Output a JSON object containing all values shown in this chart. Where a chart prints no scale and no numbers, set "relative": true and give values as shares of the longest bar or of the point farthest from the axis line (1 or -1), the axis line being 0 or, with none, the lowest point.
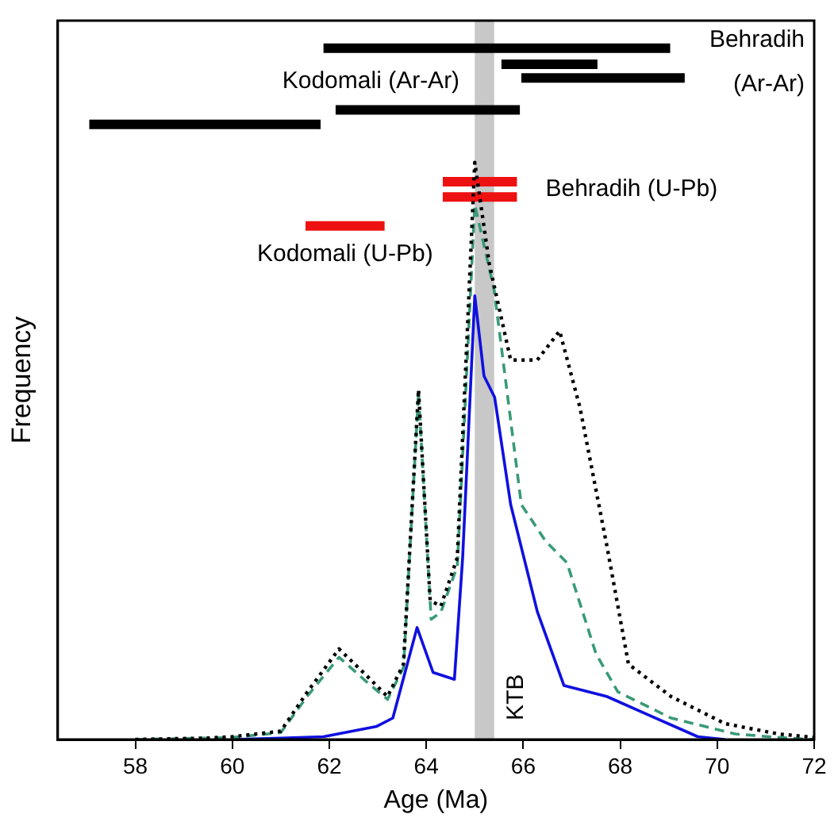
{
  "chart_data": {
    "type": "line",
    "xlabel": "Age (Ma)",
    "ylabel": "Frequency",
    "relative": true,
    "grid": false,
    "legend": "right",
    "xlim": [
      56.4,
      72
    ],
    "xticks": [
      58,
      60,
      62,
      64,
      66,
      68,
      70,
      72
    ],
    "bands": [
      {
        "axis": "x",
        "from": 65.0,
        "to": 65.4,
        "label": "KTB",
        "color": "#c8c8c8"
      }
    ],
    "series": [
      {
        "color": "#000000",
        "line_style": "dotted",
        "x": [
          58,
          59.5,
          60,
          61.0,
          61.55,
          62.2,
          62.76,
          63.2,
          63.53,
          63.84,
          64.08,
          64.3,
          64.64,
          65.0,
          65.3,
          65.74,
          66.29,
          66.75,
          67.17,
          67.73,
          68.17,
          69.05,
          70.16,
          71.26,
          72
        ],
        "values": [
          0,
          0.002,
          0.004,
          0.012,
          0.069,
          0.131,
          0.093,
          0.062,
          0.109,
          0.506,
          0.201,
          0.193,
          0.263,
          0.835,
          0.688,
          0.549,
          0.549,
          0.591,
          0.48,
          0.278,
          0.109,
          0.062,
          0.023,
          0.008,
          0.003
        ]
      },
      {
        "color": "#3a9a78",
        "line_style": "dashed",
        "x": [
          58,
          59.5,
          60,
          61.0,
          61.55,
          62.2,
          62.76,
          63.2,
          63.53,
          63.84,
          64.1,
          64.3,
          64.64,
          65.0,
          65.4,
          65.96,
          66.46,
          66.9,
          67.5,
          67.95,
          69.05,
          70.37,
          71.26,
          72
        ],
        "values": [
          0,
          0.002,
          0.003,
          0.01,
          0.063,
          0.119,
          0.084,
          0.058,
          0.104,
          0.502,
          0.174,
          0.184,
          0.251,
          0.774,
          0.65,
          0.34,
          0.287,
          0.256,
          0.124,
          0.069,
          0.031,
          0.008,
          0.003,
          0
        ]
      },
      {
        "color": "#1010e0",
        "line_style": "solid",
        "x": [
          60,
          61,
          61.88,
          62.98,
          63.31,
          63.81,
          64.14,
          64.58,
          64.75,
          65.0,
          65.19,
          65.41,
          65.74,
          66.29,
          66.84,
          67.73,
          68.5,
          69.6,
          70.16
        ],
        "values": [
          0,
          0.002,
          0.004,
          0.019,
          0.031,
          0.162,
          0.097,
          0.087,
          0.263,
          0.642,
          0.526,
          0.495,
          0.34,
          0.185,
          0.078,
          0.062,
          0.038,
          0.004,
          0
        ]
      },
      {
        "name": "Behradih (Ar-Ar)",
        "color": "#000000",
        "line_style": "solid",
        "x": [
          61.88,
          69.03
        ],
        "values": [
          1,
          1
        ]
      },
      {
        "color": "#000000",
        "line_style": "solid",
        "x": [
          65.55,
          67.53
        ],
        "values": [
          0.977,
          0.977
        ]
      },
      {
        "color": "#000000",
        "line_style": "solid",
        "x": [
          65.96,
          69.33
        ],
        "values": [
          0.957,
          0.957
        ]
      },
      {
        "name": "Kodomali (Ar-Ar)",
        "color": "#000000",
        "line_style": "solid",
        "x": [
          62.13,
          65.93
        ],
        "values": [
          0.911,
          0.911
        ]
      },
      {
        "color": "#000000",
        "line_style": "solid",
        "x": [
          57.05,
          61.82
        ],
        "values": [
          0.89,
          0.89
        ]
      },
      {
        "name": "Behradih (U-Pb)",
        "color": "#ee1111",
        "line_style": "solid",
        "x": [
          64.34,
          65.87
        ],
        "values": [
          0.807,
          0.807
        ]
      },
      {
        "color": "#ee1111",
        "line_style": "solid",
        "x": [
          64.34,
          65.87
        ],
        "values": [
          0.785,
          0.785
        ]
      },
      {
        "name": "Kodomali (U-Pb)",
        "color": "#ee1111",
        "line_style": "solid",
        "x": [
          61.51,
          63.14
        ],
        "values": [
          0.743,
          0.743
        ]
      }
    ]
  }
}
